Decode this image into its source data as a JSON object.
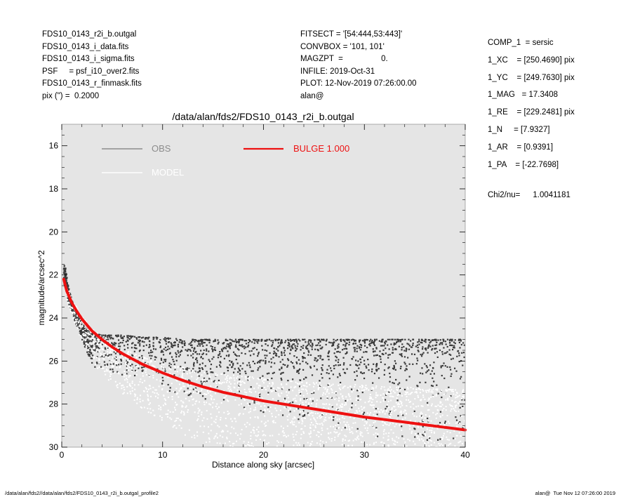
{
  "header_left": [
    "FDS10_0143_r2i_b.outgal",
    "FDS10_0143_i_data.fits",
    "FDS10_0143_i_sigma.fits",
    "PSF     = psf_i10_over2.fits",
    "FDS10_0143_r_finmask.fits",
    "pix (\") =  0.2000"
  ],
  "header_middle": [
    "FITSECT = '[54:444,53:443]'",
    "CONVBOX = '101, 101'",
    "MAGZPT  =                 0.",
    "INFILE: 2019-Oct-31",
    "PLOT: 12-Nov-2019 07:26:00.00",
    "alan@"
  ],
  "header_right": [
    "COMP_1  = sersic",
    "1_XC    = [250.4690] pix",
    "1_YC    = [249.7630] pix",
    "1_MAG   = 17.3408",
    "1_RE    = [229.2481] pix",
    "1_N     = [7.9327]",
    "1_AR    = [0.9391]",
    "1_PA    = [-22.7698]"
  ],
  "chi2": {
    "label": "Chi2/nu=",
    "value": "1.0041181"
  },
  "footer": {
    "left": "/data/alan/fds2//data/alan/fds2/FDS10_0143_r2i_b.outgal_profile2",
    "right": "alan@  Tue Nov 12 07:26:00 2019"
  },
  "colors": {
    "plot_background": "#e5e5e5",
    "obs": "#3a3a3a",
    "obs_legend": "#8c8c8c",
    "model": "#ffffff",
    "bulge": "#ee1111"
  },
  "chart_data": {
    "type": "scatter",
    "title": "/data/alan/fds2/FDS10_0143_r2i_b.outgal",
    "xlabel": "Distance along sky [arcsec]",
    "ylabel": "magnitude/arcsec^2",
    "xlim": [
      0,
      40
    ],
    "ylim": [
      30,
      15.0
    ],
    "y_inverted": true,
    "xticks": [
      0,
      10,
      20,
      30,
      40
    ],
    "yticks": [
      16,
      18,
      20,
      22,
      24,
      26,
      28,
      30
    ],
    "grid": false,
    "legend": [
      {
        "name": "OBS",
        "style": "line",
        "color": "#8c8c8c"
      },
      {
        "name": "BULGE  1.000",
        "style": "line",
        "color": "#ee1111"
      },
      {
        "name": "MODEL",
        "style": "line",
        "color": "#ffffff"
      }
    ],
    "legend_position": "top-left",
    "series": [
      {
        "name": "BULGE  1.000",
        "kind": "line",
        "x": [
          0.2,
          0.5,
          1,
          1.5,
          2,
          3,
          4,
          5,
          6,
          8,
          10,
          12,
          14,
          16,
          18,
          20,
          22,
          24,
          26,
          28,
          30,
          32,
          34,
          36,
          38,
          40
        ],
        "y": [
          22.2,
          22.75,
          23.3,
          23.7,
          24.05,
          24.6,
          25.0,
          25.35,
          25.65,
          26.15,
          26.55,
          26.9,
          27.2,
          27.45,
          27.65,
          27.85,
          28.0,
          28.15,
          28.3,
          28.45,
          28.6,
          28.72,
          28.84,
          28.96,
          29.08,
          29.2
        ]
      },
      {
        "name": "OBS",
        "kind": "scatter",
        "x": [
          0.2,
          0.4,
          0.6,
          0.9,
          1.2,
          1.5,
          2,
          2.5,
          3,
          4,
          5,
          6,
          8,
          10,
          12,
          14,
          16,
          18,
          20,
          22,
          24,
          26,
          28,
          30,
          32,
          34,
          36,
          38,
          40
        ],
        "y_upper_envelope": [
          21.4,
          21.6,
          22.4,
          23.0,
          23.3,
          23.7,
          24.0,
          24.3,
          24.5,
          24.7,
          24.7,
          24.7,
          24.8,
          24.9,
          24.9,
          24.9,
          24.9,
          24.9,
          24.9,
          24.9,
          24.9,
          24.9,
          24.8,
          24.8,
          24.8,
          24.8,
          24.8,
          24.8,
          24.8
        ],
        "y_dense_band": [
          [
            21.5,
            22.4
          ],
          [
            21.7,
            22.7
          ],
          [
            22.4,
            23.2
          ],
          [
            23.0,
            23.6
          ],
          [
            23.4,
            24.0
          ],
          [
            23.8,
            24.4
          ],
          [
            24.2,
            25.0
          ],
          [
            24.5,
            25.6
          ],
          [
            24.7,
            26.0
          ],
          [
            24.8,
            26.3
          ],
          [
            24.8,
            26.5
          ],
          [
            24.8,
            26.7
          ],
          [
            24.9,
            27.0
          ],
          [
            24.9,
            27.3
          ],
          [
            25.0,
            27.6
          ],
          [
            25.0,
            27.8
          ],
          [
            25.0,
            28.0
          ],
          [
            25.0,
            28.2
          ],
          [
            25.0,
            28.4
          ],
          [
            25.0,
            28.6
          ],
          [
            25.0,
            28.8
          ],
          [
            25.0,
            29.0
          ],
          [
            25.0,
            29.2
          ],
          [
            25.0,
            29.4
          ],
          [
            25.0,
            29.6
          ],
          [
            25.0,
            29.8
          ],
          [
            25.0,
            30.0
          ],
          [
            25.0,
            30.0
          ],
          [
            25.0,
            30.0
          ]
        ]
      },
      {
        "name": "MODEL",
        "kind": "scatter",
        "x": [
          0.5,
          1,
          2,
          3,
          4,
          5,
          6,
          8,
          10,
          12,
          14,
          16,
          18,
          20,
          22,
          24,
          26,
          28,
          30,
          32,
          34,
          36,
          38,
          40
        ],
        "y_band": [
          [
            22.6,
            23.2
          ],
          [
            23.1,
            23.9
          ],
          [
            23.9,
            25.2
          ],
          [
            24.5,
            26.0
          ],
          [
            24.9,
            26.6
          ],
          [
            25.2,
            27.1
          ],
          [
            25.4,
            27.5
          ],
          [
            25.8,
            28.3
          ],
          [
            26.1,
            28.9
          ],
          [
            26.3,
            29.4
          ],
          [
            26.5,
            29.8
          ],
          [
            26.6,
            30.0
          ],
          [
            26.7,
            30.0
          ],
          [
            26.8,
            30.0
          ],
          [
            26.9,
            30.0
          ],
          [
            27.0,
            30.0
          ],
          [
            27.0,
            30.0
          ],
          [
            27.1,
            30.0
          ],
          [
            27.1,
            30.0
          ],
          [
            27.2,
            30.0
          ],
          [
            27.2,
            30.0
          ],
          [
            27.3,
            30.0
          ],
          [
            27.3,
            30.0
          ],
          [
            27.3,
            30.0
          ]
        ]
      }
    ]
  }
}
